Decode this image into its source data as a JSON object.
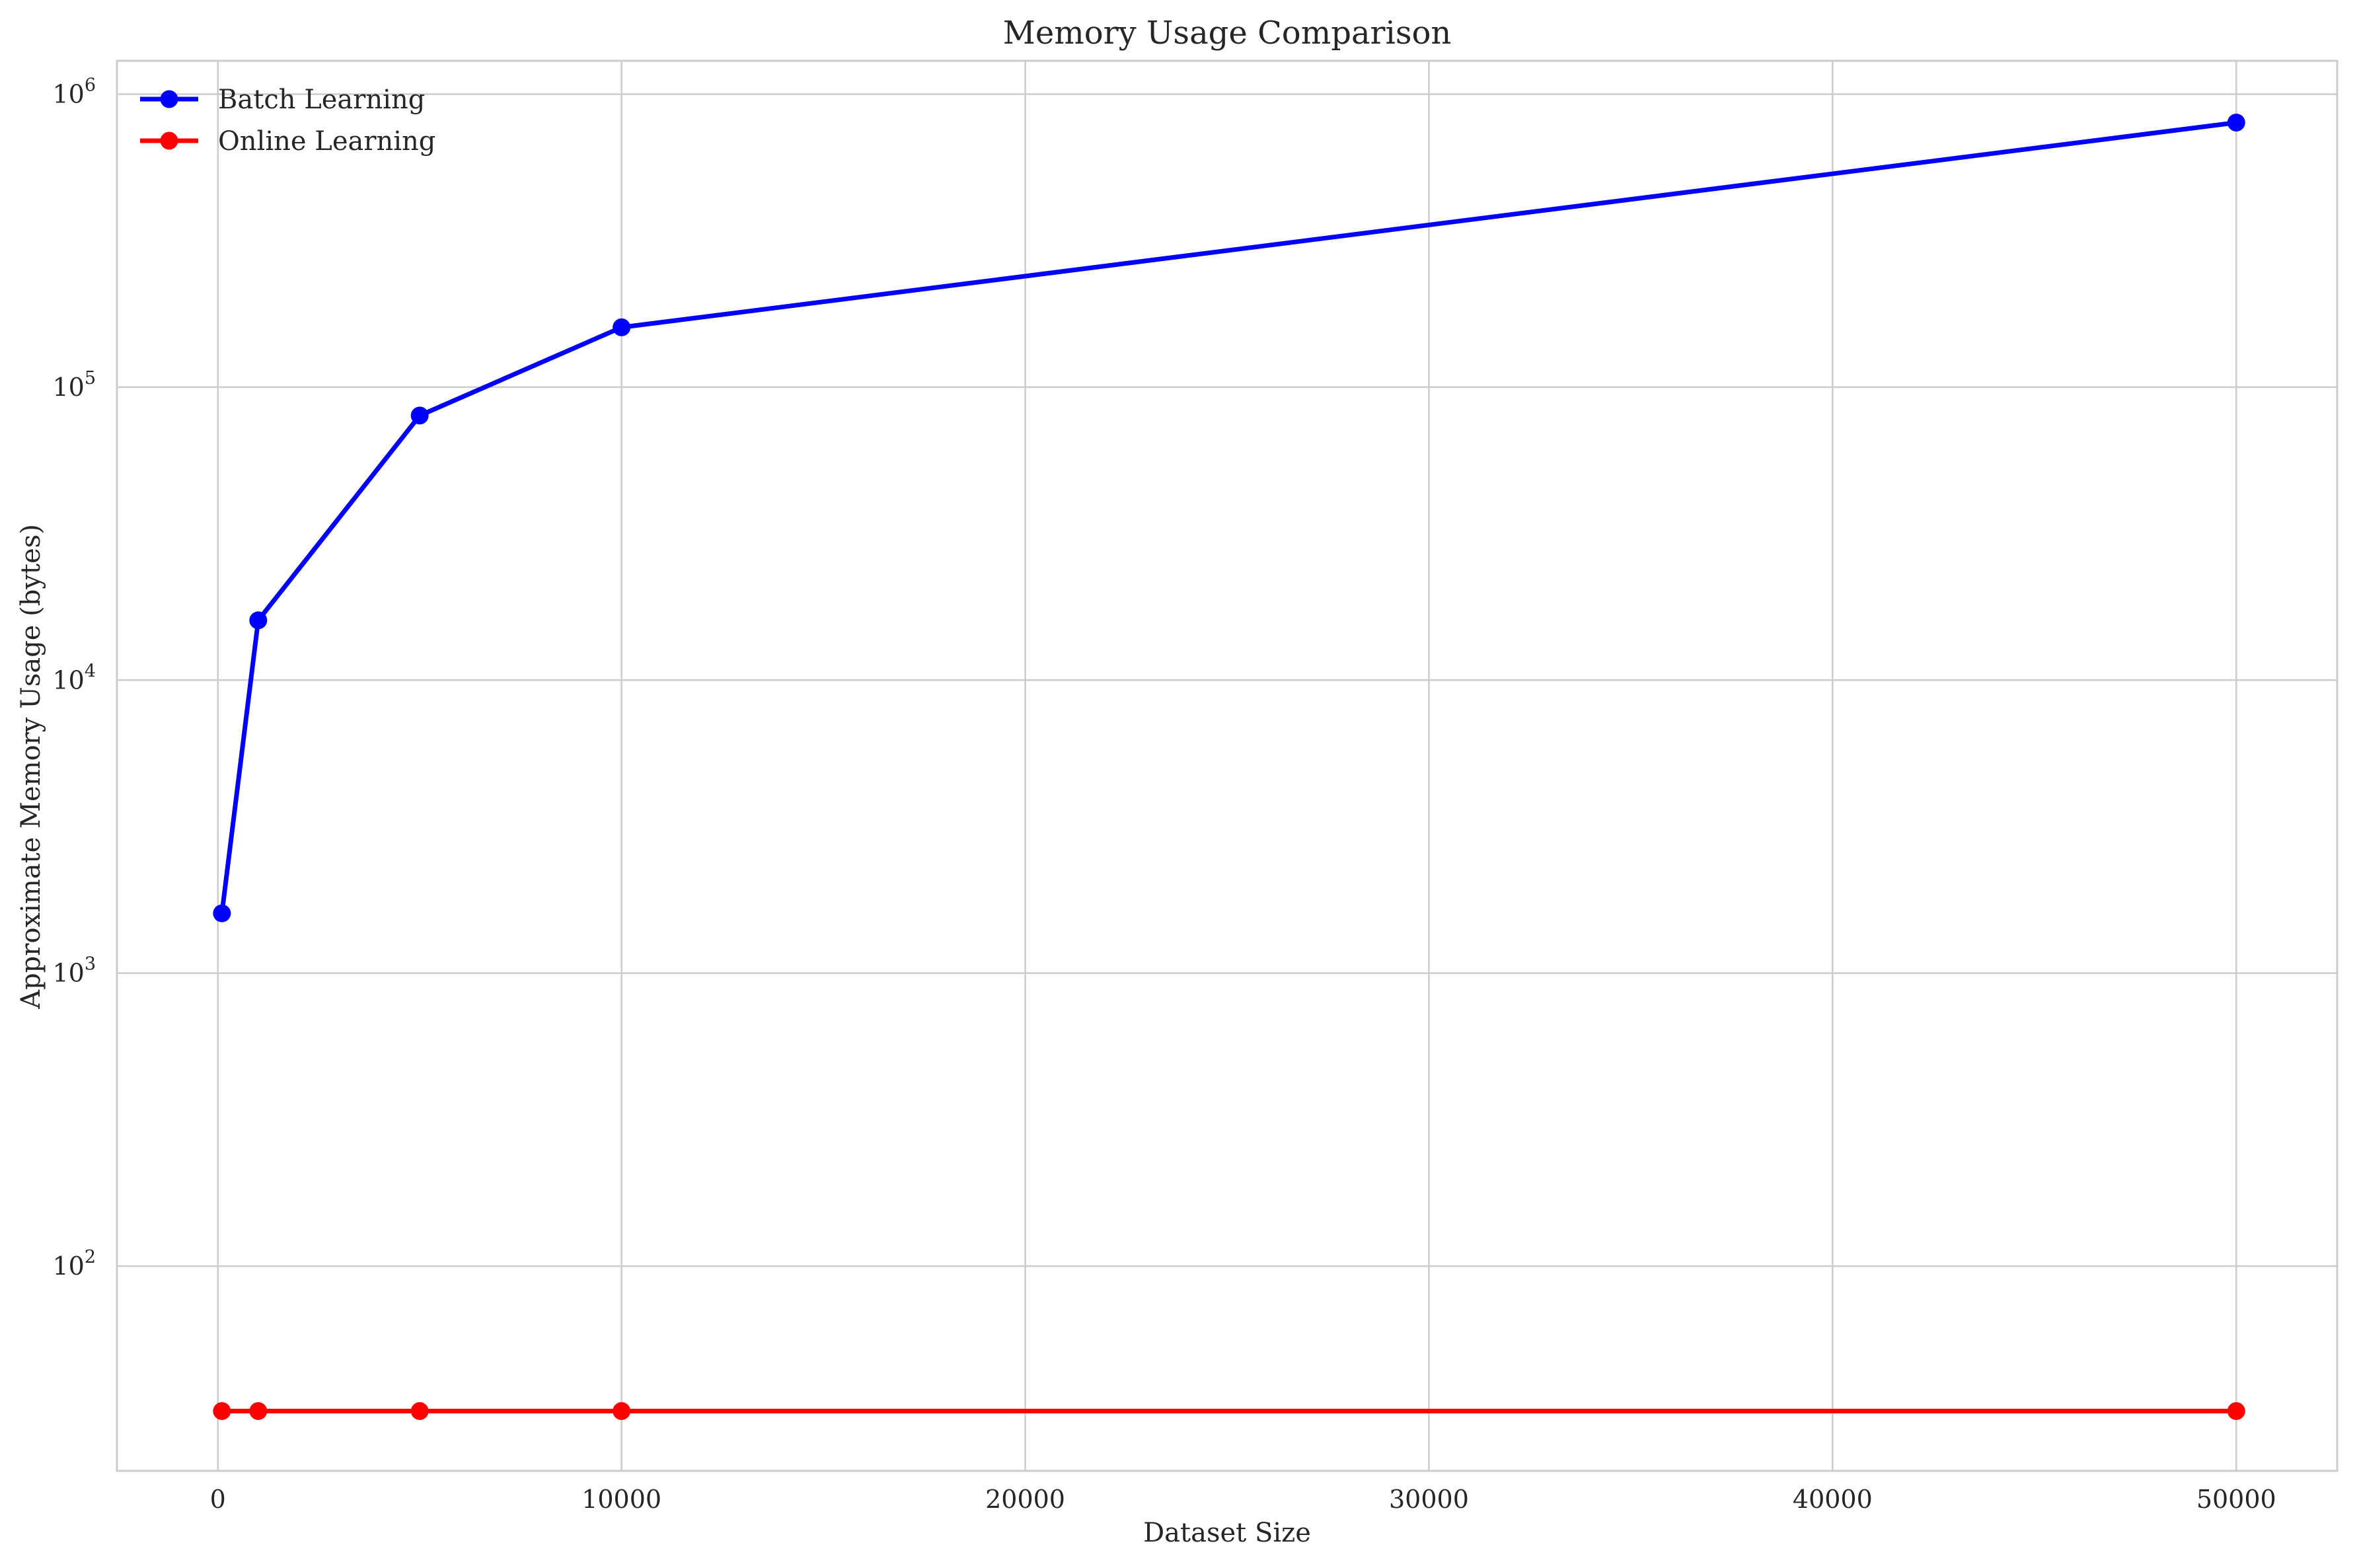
{
  "chart_data": {
    "type": "line",
    "title": "Memory Usage Comparison",
    "xlabel": "Dataset Size",
    "ylabel": "Approximate Memory Usage (bytes)",
    "xlim": [
      -2500,
      52500
    ],
    "ylim": [
      20,
      1300000
    ],
    "yscale": "log",
    "grid": true,
    "legend_position": "top-left",
    "x_ticks": [
      0,
      10000,
      20000,
      30000,
      40000,
      50000
    ],
    "x_tick_labels": [
      "0",
      "10000",
      "20000",
      "30000",
      "40000",
      "50000"
    ],
    "y_ticks": [
      100,
      1000,
      10000,
      100000,
      1000000
    ],
    "y_tick_labels": [
      {
        "base": "10",
        "exp": "2"
      },
      {
        "base": "10",
        "exp": "3"
      },
      {
        "base": "10",
        "exp": "4"
      },
      {
        "base": "10",
        "exp": "5"
      },
      {
        "base": "10",
        "exp": "6"
      }
    ],
    "x": [
      100,
      1000,
      5000,
      10000,
      50000
    ],
    "series": [
      {
        "name": "Batch Learning",
        "color": "#0000ff",
        "values": [
          1600,
          16000,
          80000,
          160000,
          800000
        ]
      },
      {
        "name": "Online Learning",
        "color": "#ff0000",
        "values": [
          32,
          32,
          32,
          32,
          32
        ]
      }
    ]
  }
}
